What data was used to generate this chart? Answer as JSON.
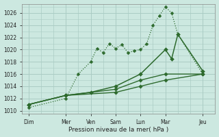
{
  "background_color": "#cce8e0",
  "grid_color": "#aaccc4",
  "line_color": "#2d6a2d",
  "title": "Pression niveau de la mer( hPa )",
  "ylim": [
    1009.5,
    1027.5
  ],
  "yticks": [
    1010,
    1012,
    1014,
    1016,
    1018,
    1020,
    1022,
    1024,
    1026
  ],
  "x_labels": [
    "Dim",
    "Mer",
    "Ven",
    "Sam",
    "Lun",
    "Mar",
    "Jeu"
  ],
  "x_positions": [
    0,
    6,
    10,
    14,
    18,
    22,
    28
  ],
  "xlim": [
    -1,
    30
  ],
  "minor_xticks": [
    0,
    2,
    4,
    6,
    8,
    10,
    12,
    14,
    16,
    18,
    20,
    22,
    24,
    26,
    28,
    30
  ],
  "series": [
    {
      "x": [
        0,
        6,
        8,
        10,
        11,
        12,
        13,
        14,
        15,
        16,
        17,
        18,
        19,
        20,
        21,
        22,
        23,
        24,
        28
      ],
      "y": [
        1010.5,
        1012.0,
        1016.0,
        1018.0,
        1020.2,
        1019.5,
        1021.0,
        1020.2,
        1020.8,
        1019.5,
        1019.8,
        1020.0,
        1021.0,
        1024.0,
        1025.5,
        1027.0,
        1026.0,
        1022.5,
        1016.0
      ],
      "style": "dotted",
      "linewidth": 0.9,
      "markersize": 2.5
    },
    {
      "x": [
        0,
        6,
        10,
        14,
        18,
        22,
        23,
        24,
        28
      ],
      "y": [
        1011.0,
        1012.5,
        1013.0,
        1014.0,
        1016.0,
        1020.0,
        1018.5,
        1022.5,
        1016.5
      ],
      "style": "solid",
      "linewidth": 1.1,
      "markersize": 3.0
    },
    {
      "x": [
        0,
        6,
        14,
        18,
        22,
        28
      ],
      "y": [
        1011.0,
        1012.5,
        1013.5,
        1015.0,
        1016.0,
        1016.0
      ],
      "style": "solid",
      "linewidth": 1.0,
      "markersize": 2.8
    },
    {
      "x": [
        0,
        6,
        14,
        18,
        22,
        28
      ],
      "y": [
        1011.0,
        1012.5,
        1013.0,
        1014.0,
        1015.0,
        1016.0
      ],
      "style": "solid",
      "linewidth": 1.0,
      "markersize": 2.8
    }
  ]
}
